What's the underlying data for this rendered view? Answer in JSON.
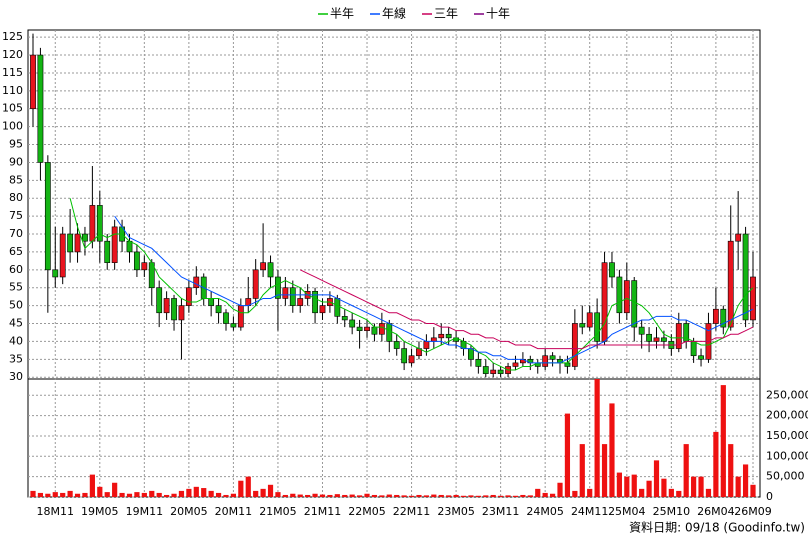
{
  "chart_data": {
    "type": "candlestick",
    "categories": [
      null,
      null,
      null,
      "18M11",
      null,
      null,
      null,
      null,
      null,
      "19M05",
      null,
      null,
      null,
      null,
      null,
      "19M11",
      null,
      null,
      null,
      null,
      null,
      "20M05",
      null,
      null,
      null,
      null,
      null,
      "20M11",
      null,
      null,
      null,
      null,
      null,
      "21M05",
      null,
      null,
      null,
      null,
      null,
      "21M11",
      null,
      null,
      null,
      null,
      null,
      "22M05",
      null,
      null,
      null,
      null,
      null,
      "22M11",
      null,
      null,
      null,
      null,
      null,
      "23M05",
      null,
      null,
      null,
      null,
      null,
      "23M11",
      null,
      null,
      null,
      null,
      null,
      "24M05",
      null,
      null,
      null,
      null,
      null,
      "24M11",
      null,
      null,
      null,
      null,
      "25M04",
      null,
      null,
      null,
      null,
      null,
      "25M10",
      null,
      null,
      null,
      null,
      null,
      "26M04",
      null,
      null,
      null,
      null,
      "26M09"
    ],
    "open": [
      105,
      120,
      90,
      60,
      58,
      70,
      65,
      70,
      68,
      78,
      68,
      62,
      72,
      68,
      65,
      60,
      62,
      55,
      48,
      52,
      46,
      50,
      55,
      58,
      52,
      50,
      48,
      45,
      44,
      50,
      52,
      60,
      62,
      58,
      52,
      55,
      50,
      52,
      54,
      48,
      50,
      52,
      47,
      46,
      44,
      43,
      44,
      42,
      45,
      40,
      38,
      34,
      36,
      38,
      40,
      41,
      42,
      41,
      40,
      38,
      35,
      33,
      31,
      32,
      31,
      33,
      34,
      35,
      34,
      33,
      36,
      35,
      34,
      33,
      45,
      44,
      48,
      40,
      62,
      58,
      48,
      57,
      44,
      42,
      40,
      41,
      40,
      38,
      45,
      40,
      36,
      35,
      45,
      49,
      44,
      68,
      70,
      46
    ],
    "high": [
      126,
      122,
      92,
      72,
      72,
      77,
      73,
      72,
      89,
      82,
      70,
      74,
      74,
      70,
      67,
      64,
      63,
      57,
      54,
      53,
      52,
      57,
      61,
      59,
      54,
      52,
      49,
      47,
      52,
      58,
      63,
      73,
      64,
      60,
      58,
      57,
      55,
      56,
      55,
      52,
      54,
      53,
      49,
      48,
      46,
      46,
      45,
      48,
      46,
      42,
      40,
      38,
      40,
      42,
      44,
      45,
      44,
      43,
      41,
      39,
      37,
      35,
      34,
      33,
      34,
      36,
      37,
      36,
      35,
      38,
      37,
      36,
      36,
      49,
      50,
      50,
      52,
      65,
      65,
      60,
      62,
      58,
      46,
      44,
      44,
      43,
      42,
      48,
      46,
      41,
      38,
      48,
      55,
      50,
      78,
      82,
      72,
      65
    ],
    "low": [
      100,
      85,
      48,
      55,
      56,
      62,
      62,
      64,
      66,
      62,
      60,
      60,
      65,
      62,
      58,
      58,
      50,
      44,
      46,
      43,
      35,
      48,
      53,
      50,
      47,
      45,
      43,
      43,
      43,
      48,
      50,
      58,
      55,
      43,
      50,
      48,
      48,
      50,
      45,
      46,
      48,
      45,
      44,
      42,
      38,
      41,
      40,
      40,
      37,
      36,
      32,
      33,
      35,
      36,
      38,
      39,
      39,
      38,
      36,
      33,
      31,
      30,
      30,
      30,
      30,
      32,
      33,
      32,
      31,
      32,
      33,
      31,
      31,
      32,
      42,
      43,
      38,
      39,
      55,
      45,
      46,
      40,
      38,
      37,
      38,
      38,
      36,
      37,
      38,
      34,
      33,
      34,
      43,
      42,
      43,
      60,
      44,
      44
    ],
    "close": [
      120,
      90,
      60,
      58,
      70,
      65,
      70,
      68,
      78,
      68,
      62,
      72,
      68,
      65,
      60,
      62,
      55,
      48,
      52,
      46,
      50,
      55,
      58,
      52,
      50,
      48,
      45,
      44,
      50,
      52,
      60,
      62,
      58,
      52,
      55,
      50,
      52,
      54,
      48,
      50,
      52,
      47,
      46,
      44,
      43,
      44,
      42,
      45,
      40,
      38,
      34,
      36,
      38,
      40,
      41,
      42,
      41,
      40,
      38,
      35,
      33,
      31,
      32,
      31,
      33,
      34,
      35,
      34,
      33,
      36,
      35,
      34,
      33,
      45,
      44,
      48,
      40,
      62,
      58,
      48,
      57,
      44,
      42,
      40,
      41,
      40,
      38,
      45,
      40,
      36,
      35,
      45,
      49,
      44,
      68,
      70,
      46,
      58
    ],
    "up_color": "#e8141e",
    "down_color": "#14b414",
    "series": [
      {
        "name": "半年",
        "color": "#00c000",
        "values": [
          null,
          null,
          null,
          null,
          null,
          80,
          72,
          66,
          68,
          70,
          69,
          70,
          70,
          68,
          67,
          65,
          62,
          58,
          56,
          54,
          52,
          51,
          51,
          52,
          52,
          52,
          51,
          49,
          48,
          48,
          50,
          53,
          55,
          56,
          57,
          56,
          55,
          53,
          52,
          51,
          51,
          50,
          49,
          48,
          47,
          46,
          44,
          44,
          43,
          42,
          40,
          39,
          38,
          37,
          38,
          39,
          40,
          41,
          40,
          39,
          37,
          36,
          34,
          33,
          32,
          32,
          33,
          33,
          34,
          34,
          34,
          34,
          34,
          36,
          38,
          40,
          42,
          45,
          50,
          51,
          52,
          51,
          50,
          48,
          45,
          42,
          41,
          41,
          41,
          40,
          39,
          39,
          40,
          41,
          45,
          50,
          53,
          55
        ]
      },
      {
        "name": "年線",
        "color": "#0050ff",
        "values": [
          null,
          null,
          null,
          null,
          null,
          null,
          null,
          null,
          null,
          null,
          null,
          75,
          72,
          69,
          68,
          67,
          66,
          64,
          62,
          60,
          58,
          57,
          56,
          55,
          54,
          53,
          52,
          51,
          50,
          50,
          51,
          52,
          52,
          53,
          53,
          53,
          53,
          53,
          53,
          53,
          53,
          52,
          51,
          50,
          49,
          48,
          47,
          46,
          45,
          44,
          43,
          42,
          41,
          40,
          40,
          40,
          39,
          39,
          38,
          38,
          37,
          37,
          36,
          36,
          35,
          35,
          35,
          34,
          34,
          34,
          34,
          34,
          35,
          36,
          37,
          38,
          39,
          40,
          42,
          43,
          44,
          45,
          46,
          46,
          47,
          47,
          47,
          46,
          46,
          45,
          44,
          43,
          44,
          45,
          46,
          47,
          48,
          49
        ]
      },
      {
        "name": "三年",
        "color": "#c8005a",
        "values": [
          null,
          null,
          null,
          null,
          null,
          null,
          null,
          null,
          null,
          null,
          null,
          null,
          null,
          null,
          null,
          null,
          null,
          null,
          null,
          null,
          null,
          null,
          null,
          null,
          null,
          null,
          null,
          null,
          null,
          null,
          null,
          null,
          null,
          null,
          null,
          null,
          60,
          59,
          58,
          57,
          56,
          55,
          54,
          53,
          52,
          51,
          50,
          49,
          48,
          48,
          47,
          46,
          46,
          45,
          45,
          44,
          44,
          43,
          43,
          42,
          42,
          41,
          41,
          40,
          40,
          39,
          39,
          39,
          38,
          38,
          38,
          38,
          38,
          38,
          38,
          39,
          39,
          39,
          39,
          39,
          39,
          39,
          39,
          39,
          39,
          39,
          39,
          39,
          40,
          40,
          40,
          40,
          41,
          41,
          42,
          42,
          43,
          44
        ]
      },
      {
        "name": "十年",
        "color": "#800080",
        "values": [
          null,
          null,
          null,
          null,
          null,
          null,
          null,
          null,
          null,
          null,
          null,
          null,
          null,
          null,
          null,
          null,
          null,
          null,
          null,
          null,
          null,
          null,
          null,
          null,
          null,
          null,
          null,
          null,
          null,
          null,
          null,
          null,
          null,
          null,
          null,
          null,
          null,
          null,
          null,
          null,
          null,
          null,
          null,
          null,
          null,
          null,
          null,
          null,
          null,
          null,
          null,
          null,
          null,
          null,
          null,
          null,
          null,
          null,
          null,
          null,
          null,
          null,
          null,
          null,
          null,
          null,
          null,
          null,
          null,
          null,
          null,
          null,
          null,
          null,
          null,
          null,
          null,
          null,
          null,
          null,
          null,
          null,
          null,
          null,
          null,
          null,
          null,
          null,
          null,
          null,
          null,
          null,
          null,
          null,
          null,
          null,
          null,
          null
        ]
      }
    ],
    "volume": {
      "color": "#ee1111",
      "axis": "y2",
      "values": [
        15000,
        10000,
        8000,
        12000,
        10000,
        15000,
        8000,
        10000,
        55000,
        25000,
        12000,
        35000,
        10000,
        8000,
        12000,
        10000,
        15000,
        10000,
        5000,
        8000,
        15000,
        20000,
        25000,
        22000,
        15000,
        10000,
        5000,
        8000,
        40000,
        50000,
        15000,
        20000,
        30000,
        12000,
        5000,
        8000,
        6000,
        5000,
        8000,
        6000,
        5000,
        7000,
        5000,
        6000,
        4000,
        8000,
        5000,
        4000,
        6000,
        5000,
        4000,
        3000,
        5000,
        4000,
        6000,
        5000,
        4000,
        5000,
        3000,
        4000,
        3000,
        4000,
        5000,
        3000,
        4000,
        3000,
        5000,
        4000,
        20000,
        10000,
        8000,
        35000,
        205000,
        15000,
        130000,
        20000,
        290000,
        130000,
        230000,
        60000,
        50000,
        55000,
        20000,
        40000,
        90000,
        45000,
        20000,
        15000,
        130000,
        50000,
        50000,
        20000,
        160000,
        275000,
        130000,
        50000,
        80000,
        30000
      ]
    },
    "ylim": [
      29.5,
      127
    ],
    "yticks": [
      30,
      35,
      40,
      45,
      50,
      55,
      60,
      65,
      70,
      75,
      80,
      85,
      90,
      95,
      100,
      105,
      110,
      115,
      120,
      125
    ],
    "y2lim": [
      0,
      290000
    ],
    "y2ticks": [
      0,
      {
        "value": 50000,
        "label": "50,000"
      },
      {
        "value": 100000,
        "label": "100,000"
      },
      {
        "value": 150000,
        "label": "150,000"
      },
      {
        "value": 200000,
        "label": "200,000"
      },
      {
        "value": 250000,
        "label": "250,000"
      }
    ],
    "grid": true,
    "legend": "top",
    "footer": "資料日期: 09/18 (Goodinfo.tw)"
  }
}
